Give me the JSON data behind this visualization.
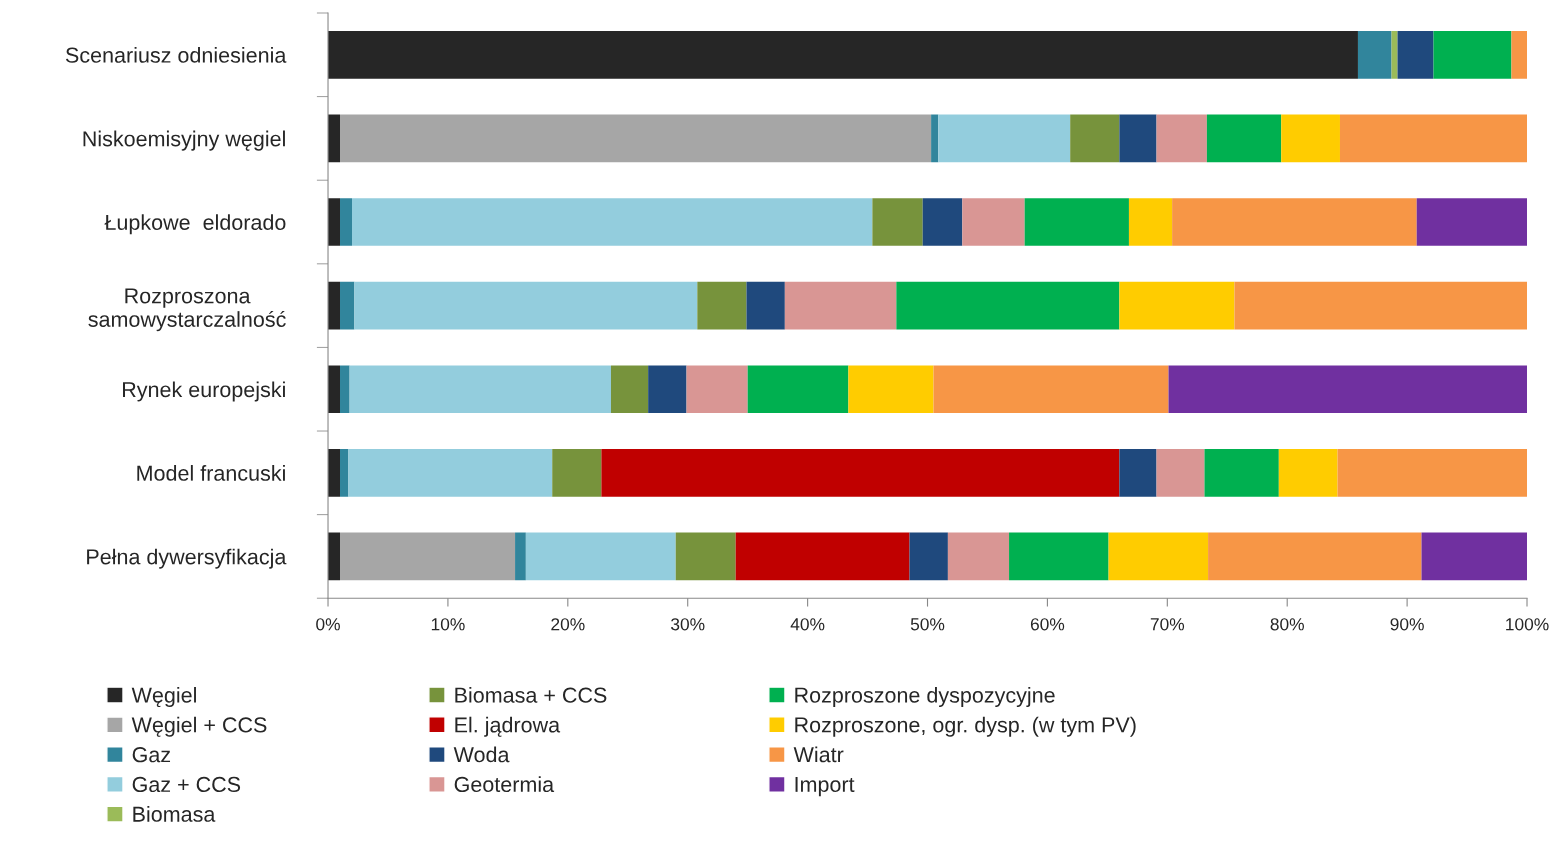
{
  "chart_data": {
    "type": "bar",
    "orientation": "horizontal",
    "stacked": true,
    "categories": [
      "Scenariusz odniesienia",
      "Niskoemisyjny węgiel",
      "Łupkowe  eldorado",
      "Rozproszona\nsamowystarczalność",
      "Rynek europejski",
      "Model francuski",
      "Pełna dywersyfikacja"
    ],
    "series": [
      {
        "name": "Węgiel",
        "color": "#262626",
        "values": [
          85.9,
          1.0,
          1.0,
          1.0,
          1.0,
          1.0,
          1.0
        ]
      },
      {
        "name": "Węgiel + CCS",
        "color": "#a6a6a6",
        "values": [
          null,
          49.3,
          null,
          null,
          null,
          null,
          14.6
        ]
      },
      {
        "name": "Gaz",
        "color": "#31859c",
        "values": [
          2.8,
          0.6,
          1.0,
          1.2,
          0.8,
          0.7,
          0.9
        ]
      },
      {
        "name": "Gaz + CCS",
        "color": "#93cddd",
        "values": [
          null,
          11.0,
          43.4,
          28.6,
          21.8,
          17.0,
          12.5
        ]
      },
      {
        "name": "Biomasa",
        "color": "#9bbb59",
        "values": [
          0.5,
          null,
          null,
          null,
          null,
          null,
          null
        ]
      },
      {
        "name": "Biomasa + CCS",
        "color": "#77933c",
        "values": [
          null,
          4.1,
          4.2,
          4.1,
          3.1,
          4.1,
          5.0
        ]
      },
      {
        "name": "El. jądrowa",
        "color": "#c00000",
        "values": [
          null,
          null,
          null,
          null,
          null,
          43.2,
          14.5
        ]
      },
      {
        "name": "Woda",
        "color": "#1f497d",
        "values": [
          3.0,
          3.1,
          3.3,
          3.2,
          3.2,
          3.1,
          3.2
        ]
      },
      {
        "name": "Geotermia",
        "color": "#d99694",
        "values": [
          null,
          4.2,
          5.2,
          9.3,
          5.1,
          4.0,
          5.1
        ]
      },
      {
        "name": "Rozproszone dyspozycyjne",
        "color": "#00b050",
        "values": [
          6.5,
          6.2,
          8.7,
          18.6,
          8.4,
          6.2,
          8.3
        ]
      },
      {
        "name": "Rozproszone, ogr. dysp. (w tym PV)",
        "color": "#ffcc00",
        "values": [
          null,
          4.9,
          3.6,
          9.6,
          7.1,
          4.9,
          8.3
        ]
      },
      {
        "name": "Wiatr",
        "color": "#f79646",
        "values": [
          1.3,
          15.6,
          20.4,
          24.4,
          19.6,
          15.8,
          17.8
        ]
      },
      {
        "name": "Import",
        "color": "#7030a0",
        "values": [
          null,
          null,
          9.2,
          null,
          29.9,
          null,
          8.8
        ]
      }
    ],
    "xlim": [
      0,
      100
    ],
    "xticks": [
      {
        "value": 0,
        "label": "0%"
      },
      {
        "value": 10,
        "label": "10%"
      },
      {
        "value": 20,
        "label": "20%"
      },
      {
        "value": 30,
        "label": "30%"
      },
      {
        "value": 40,
        "label": "40%"
      },
      {
        "value": 50,
        "label": "50%"
      },
      {
        "value": 60,
        "label": "60%"
      },
      {
        "value": 70,
        "label": "70%"
      },
      {
        "value": 80,
        "label": "80%"
      },
      {
        "value": 90,
        "label": "90%"
      },
      {
        "value": 100,
        "label": "100%"
      }
    ],
    "legend": "bottom",
    "grid": false
  }
}
